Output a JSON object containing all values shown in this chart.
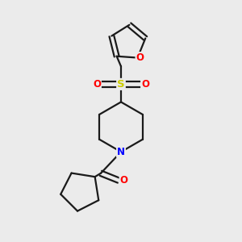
{
  "background_color": "#ebebeb",
  "bond_color": "#1a1a1a",
  "bond_width": 1.6,
  "atom_colors": {
    "O": "#ff0000",
    "N": "#0000ff",
    "S": "#cccc00",
    "C": "#1a1a1a"
  },
  "font_size_atoms": 8.5,
  "figsize": [
    3.0,
    3.0
  ],
  "dpi": 100,
  "xlim": [
    0,
    10
  ],
  "ylim": [
    0,
    10
  ]
}
